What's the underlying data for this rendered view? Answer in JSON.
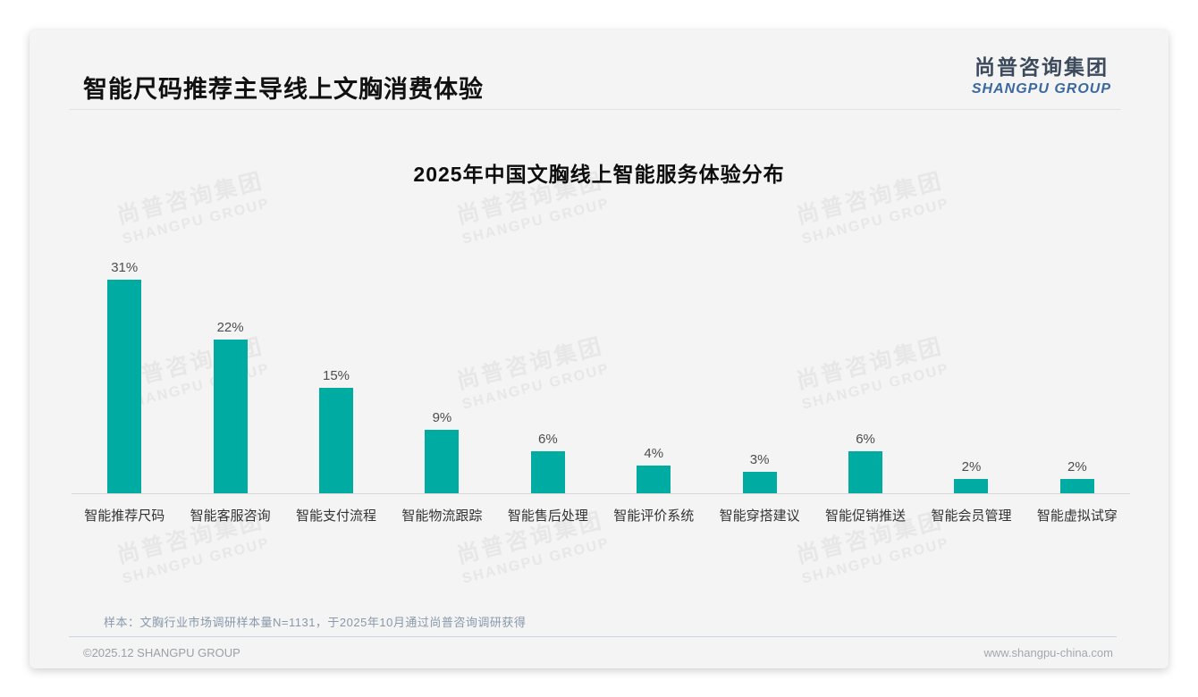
{
  "page": {
    "header": {
      "title": "智能尺码推荐主导线上文胸消费体验"
    },
    "logo": {
      "zh": "尚普咨询集团",
      "en": "SHANGPU GROUP"
    },
    "watermark": {
      "zh": "尚普咨询集团",
      "en": "SHANGPU GROUP"
    },
    "footnote": "样本：文胸行业市场调研样本量N=1131，于2025年10月通过尚普咨询调研获得",
    "footer": {
      "copyright": "©2025.12 SHANGPU GROUP",
      "website": "www.shangpu-china.com"
    }
  },
  "chart_data": {
    "type": "bar",
    "title": "2025年中国文胸线上智能服务体验分布",
    "categories": [
      "智能推荐尺码",
      "智能客服咨询",
      "智能支付流程",
      "智能物流跟踪",
      "智能售后处理",
      "智能评价系统",
      "智能穿搭建议",
      "智能促销推送",
      "智能会员管理",
      "智能虚拟试穿"
    ],
    "values": [
      31,
      22,
      15,
      9,
      6,
      4,
      3,
      6,
      2,
      2
    ],
    "unit": "%",
    "value_labels": true,
    "grid": false,
    "legend": "none",
    "ylim": [
      0,
      33
    ],
    "bar_color": "#00aba2",
    "axis_line_color": "#d8d8d8"
  }
}
